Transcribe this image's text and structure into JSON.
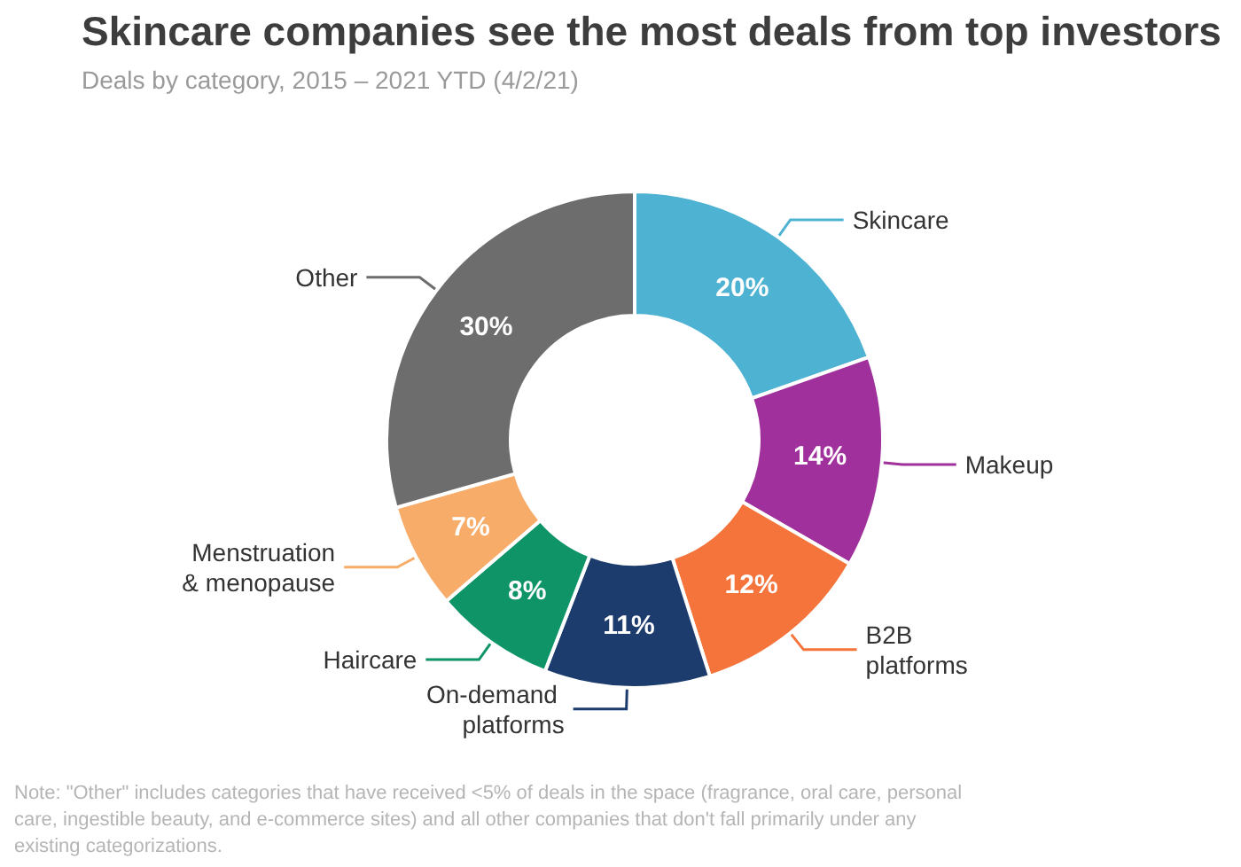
{
  "chart_data": {
    "type": "donut",
    "title": "Skincare companies see the most deals from top investors",
    "subtitle": "Deals by category, 2015 – 2021 YTD (4/2/21)",
    "categories": [
      "Skincare",
      "Makeup",
      "B2B platforms",
      "On-demand platforms",
      "Haircare",
      "Menstruation & menopause",
      "Other"
    ],
    "values": [
      20,
      14,
      12,
      11,
      8,
      7,
      30
    ],
    "colors": [
      "#4eb3d3",
      "#a0309b",
      "#f4743b",
      "#1d3c6e",
      "#0f9468",
      "#f8ac6a",
      "#6d6d6d"
    ],
    "value_labels": [
      "20%",
      "14%",
      "12%",
      "11%",
      "8%",
      "7%",
      "30%"
    ],
    "annotations": [
      "Note: \"Other\" includes categories that have received <5% of deals in the space (fragrance, oral care, personal care, ingestible beauty, and e-commerce sites) and all other companies that don't fall primarily under any existing categorizations."
    ]
  }
}
